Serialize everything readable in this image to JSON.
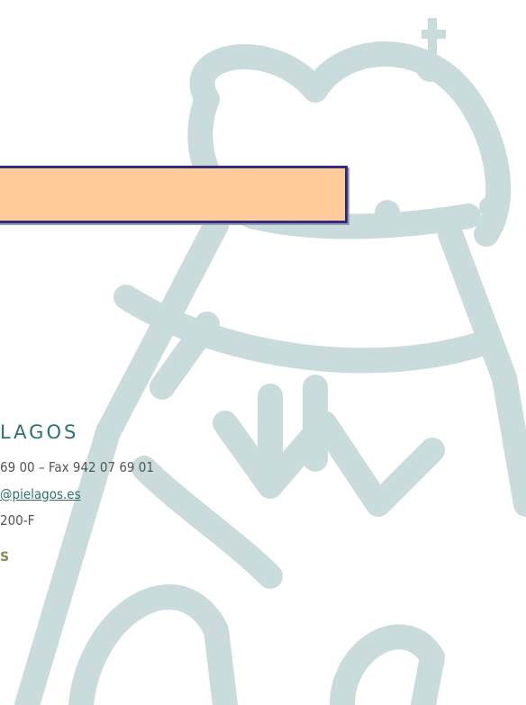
{
  "letterhead": {
    "name": "LAGOS",
    "phone_fax": "69 00 – Fax 942 07 69 01",
    "email": "@pielagos.es",
    "cif": "200-F",
    "footer_mark": "S"
  }
}
